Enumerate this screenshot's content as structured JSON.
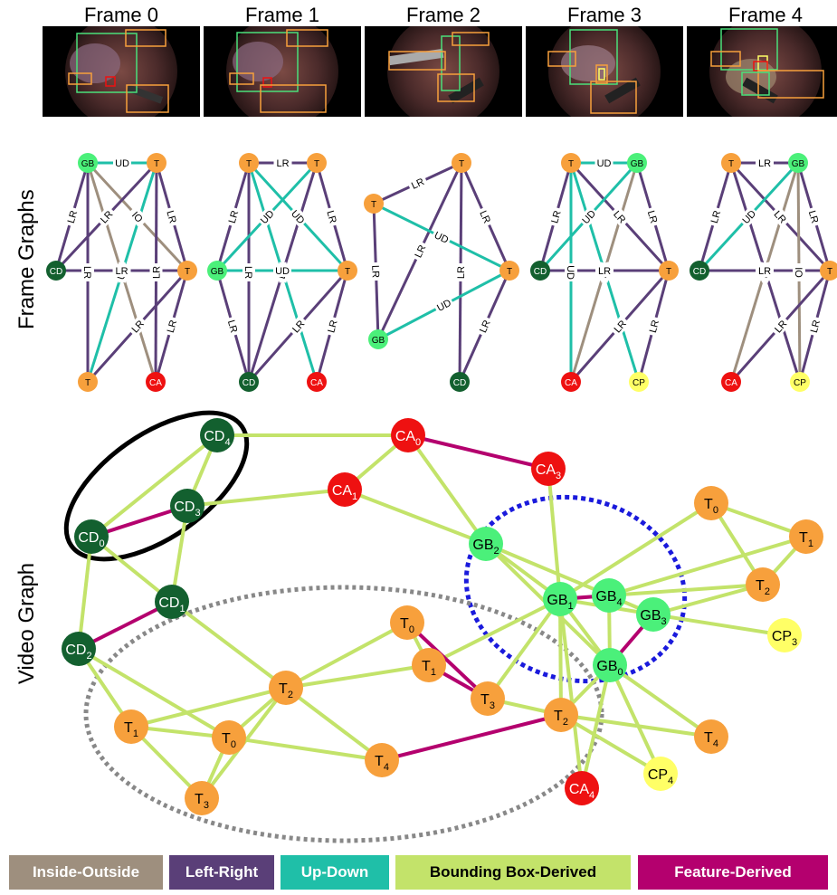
{
  "frames": {
    "titles": [
      "Frame 0",
      "Frame 1",
      "Frame 2",
      "Frame 3",
      "Frame 4"
    ]
  },
  "side_labels": {
    "frame_graphs": "Frame Graphs",
    "video_graph": "Video Graph"
  },
  "colors": {
    "T": "#f7a03c",
    "GB": "#4bf07a",
    "CD": "#13602f",
    "CA": "#ee1111",
    "CP": "#ffff66",
    "inside_outside": "#9e8f7e",
    "left_right": "#5a3f78",
    "up_down": "#1fbfa8",
    "bbox": "#c3e36a",
    "feature": "#b4006e"
  },
  "frame_graphs": [
    {
      "nodes": [
        {
          "label": "GB",
          "type": "GB"
        },
        {
          "label": "T",
          "type": "T"
        },
        {
          "label": "CD",
          "type": "CD"
        },
        {
          "label": "T",
          "type": "T"
        },
        {
          "label": "T",
          "type": "T"
        },
        {
          "label": "CA",
          "type": "CA"
        }
      ],
      "edges": [
        {
          "s": 0,
          "t": 1,
          "type": "up_down",
          "label": "UD"
        },
        {
          "s": 0,
          "t": 2,
          "type": "left_right",
          "label": "LR"
        },
        {
          "s": 0,
          "t": 3,
          "type": "inside_outside",
          "label": "IO"
        },
        {
          "s": 0,
          "t": 4,
          "type": "left_right",
          "label": "LR"
        },
        {
          "s": 0,
          "t": 5,
          "type": "inside_outside",
          "label": "IO"
        },
        {
          "s": 1,
          "t": 2,
          "type": "left_right",
          "label": "LR"
        },
        {
          "s": 1,
          "t": 3,
          "type": "left_right",
          "label": "LR"
        },
        {
          "s": 1,
          "t": 4,
          "type": "up_down",
          "label": "UD"
        },
        {
          "s": 1,
          "t": 5,
          "type": "left_right",
          "label": "LR"
        },
        {
          "s": 2,
          "t": 3,
          "type": "left_right",
          "label": "LR"
        },
        {
          "s": 3,
          "t": 4,
          "type": "left_right",
          "label": "LR"
        },
        {
          "s": 3,
          "t": 5,
          "type": "left_right",
          "label": "LR"
        }
      ]
    },
    {
      "nodes": [
        {
          "label": "T",
          "type": "T"
        },
        {
          "label": "T",
          "type": "T"
        },
        {
          "label": "GB",
          "type": "GB"
        },
        {
          "label": "T",
          "type": "T"
        },
        {
          "label": "CD",
          "type": "CD"
        },
        {
          "label": "CA",
          "type": "CA"
        }
      ],
      "edges": [
        {
          "s": 0,
          "t": 1,
          "type": "left_right",
          "label": "LR"
        },
        {
          "s": 0,
          "t": 2,
          "type": "left_right",
          "label": "LR"
        },
        {
          "s": 0,
          "t": 3,
          "type": "up_down",
          "label": "UD"
        },
        {
          "s": 0,
          "t": 4,
          "type": "left_right",
          "label": "LR"
        },
        {
          "s": 0,
          "t": 5,
          "type": "up_down",
          "label": "UD"
        },
        {
          "s": 1,
          "t": 2,
          "type": "up_down",
          "label": "UD"
        },
        {
          "s": 1,
          "t": 3,
          "type": "left_right",
          "label": "LR"
        },
        {
          "s": 1,
          "t": 4,
          "type": "left_right",
          "label": "LR"
        },
        {
          "s": 2,
          "t": 3,
          "type": "up_down",
          "label": "UD"
        },
        {
          "s": 2,
          "t": 4,
          "type": "left_right",
          "label": "LR"
        },
        {
          "s": 3,
          "t": 4,
          "type": "left_right",
          "label": "LR"
        },
        {
          "s": 3,
          "t": 5,
          "type": "left_right",
          "label": "LR"
        }
      ]
    },
    {
      "nodes": [
        {
          "label": "T",
          "type": "T"
        },
        {
          "label": "T",
          "type": "T"
        },
        {
          "label": "T",
          "type": "T"
        },
        {
          "label": "GB",
          "type": "GB"
        },
        {
          "label": "CD",
          "type": "CD"
        }
      ],
      "edges": [
        {
          "s": 0,
          "t": 1,
          "type": "left_right",
          "label": "LR"
        },
        {
          "s": 0,
          "t": 2,
          "type": "left_right",
          "label": "LR"
        },
        {
          "s": 0,
          "t": 3,
          "type": "left_right",
          "label": "LR"
        },
        {
          "s": 0,
          "t": 4,
          "type": "left_right",
          "label": "LR"
        },
        {
          "s": 1,
          "t": 2,
          "type": "up_down",
          "label": "UD"
        },
        {
          "s": 1,
          "t": 3,
          "type": "left_right",
          "label": "LR"
        },
        {
          "s": 3,
          "t": 2,
          "type": "up_down",
          "label": "UD"
        },
        {
          "s": 2,
          "t": 4,
          "type": "left_right",
          "label": "LR"
        }
      ]
    },
    {
      "nodes": [
        {
          "label": "T",
          "type": "T"
        },
        {
          "label": "GB",
          "type": "GB"
        },
        {
          "label": "CD",
          "type": "CD"
        },
        {
          "label": "T",
          "type": "T"
        },
        {
          "label": "CA",
          "type": "CA"
        },
        {
          "label": "CP",
          "type": "CP"
        }
      ],
      "edges": [
        {
          "s": 0,
          "t": 1,
          "type": "up_down",
          "label": "UD"
        },
        {
          "s": 0,
          "t": 2,
          "type": "left_right",
          "label": "LR"
        },
        {
          "s": 0,
          "t": 3,
          "type": "left_right",
          "label": "LR"
        },
        {
          "s": 0,
          "t": 4,
          "type": "up_down",
          "label": "UD"
        },
        {
          "s": 0,
          "t": 5,
          "type": "up_down",
          "label": "UD"
        },
        {
          "s": 1,
          "t": 2,
          "type": "up_down",
          "label": "UD"
        },
        {
          "s": 1,
          "t": 3,
          "type": "left_right",
          "label": "LR"
        },
        {
          "s": 1,
          "t": 4,
          "type": "inside_outside",
          "label": "IO"
        },
        {
          "s": 2,
          "t": 3,
          "type": "left_right",
          "label": "LR"
        },
        {
          "s": 3,
          "t": 4,
          "type": "left_right",
          "label": "LR"
        },
        {
          "s": 3,
          "t": 5,
          "type": "left_right",
          "label": "LR"
        }
      ]
    },
    {
      "nodes": [
        {
          "label": "T",
          "type": "T"
        },
        {
          "label": "GB",
          "type": "GB"
        },
        {
          "label": "CD",
          "type": "CD"
        },
        {
          "label": "T",
          "type": "T"
        },
        {
          "label": "CA",
          "type": "CA"
        },
        {
          "label": "CP",
          "type": "CP"
        }
      ],
      "edges": [
        {
          "s": 0,
          "t": 1,
          "type": "left_right",
          "label": "LR"
        },
        {
          "s": 0,
          "t": 2,
          "type": "left_right",
          "label": "LR"
        },
        {
          "s": 0,
          "t": 3,
          "type": "left_right",
          "label": "LR"
        },
        {
          "s": 0,
          "t": 5,
          "type": "left_right",
          "label": "LR"
        },
        {
          "s": 1,
          "t": 2,
          "type": "up_down",
          "label": "UD"
        },
        {
          "s": 1,
          "t": 3,
          "type": "left_right",
          "label": "LR"
        },
        {
          "s": 1,
          "t": 4,
          "type": "inside_outside",
          "label": "IO"
        },
        {
          "s": 1,
          "t": 5,
          "type": "inside_outside",
          "label": "IO"
        },
        {
          "s": 2,
          "t": 3,
          "type": "left_right",
          "label": "LR"
        },
        {
          "s": 3,
          "t": 4,
          "type": "left_right",
          "label": "LR"
        },
        {
          "s": 3,
          "t": 5,
          "type": "left_right",
          "label": "LR"
        }
      ]
    }
  ],
  "video_graph": {
    "nodes": [
      {
        "id": "CD4",
        "base": "CD",
        "sub": "4",
        "type": "CD"
      },
      {
        "id": "CD3",
        "base": "CD",
        "sub": "3",
        "type": "CD"
      },
      {
        "id": "CD0",
        "base": "CD",
        "sub": "0",
        "type": "CD"
      },
      {
        "id": "CD1",
        "base": "CD",
        "sub": "1",
        "type": "CD"
      },
      {
        "id": "CD2",
        "base": "CD",
        "sub": "2",
        "type": "CD"
      },
      {
        "id": "CA0",
        "base": "CA",
        "sub": "0",
        "type": "CA"
      },
      {
        "id": "CA1",
        "base": "CA",
        "sub": "1",
        "type": "CA"
      },
      {
        "id": "CA3",
        "base": "CA",
        "sub": "3",
        "type": "CA"
      },
      {
        "id": "CA4",
        "base": "CA",
        "sub": "4",
        "type": "CA"
      },
      {
        "id": "GB2",
        "base": "GB",
        "sub": "2",
        "type": "GB"
      },
      {
        "id": "GB1",
        "base": "GB",
        "sub": "1",
        "type": "GB"
      },
      {
        "id": "GB4",
        "base": "GB",
        "sub": "4",
        "type": "GB"
      },
      {
        "id": "GB3",
        "base": "GB",
        "sub": "3",
        "type": "GB"
      },
      {
        "id": "GB0",
        "base": "GB",
        "sub": "0",
        "type": "GB"
      },
      {
        "id": "T0a",
        "base": "T",
        "sub": "0",
        "type": "T"
      },
      {
        "id": "T1a",
        "base": "T",
        "sub": "1",
        "type": "T"
      },
      {
        "id": "T2a",
        "base": "T",
        "sub": "2",
        "type": "T"
      },
      {
        "id": "CP3",
        "base": "CP",
        "sub": "3",
        "type": "CP"
      },
      {
        "id": "CP4",
        "base": "CP",
        "sub": "4",
        "type": "CP"
      },
      {
        "id": "T4a",
        "base": "T",
        "sub": "4",
        "type": "T"
      },
      {
        "id": "T2b",
        "base": "T",
        "sub": "2",
        "type": "T"
      },
      {
        "id": "T0b",
        "base": "T",
        "sub": "0",
        "type": "T"
      },
      {
        "id": "T1b",
        "base": "T",
        "sub": "1",
        "type": "T"
      },
      {
        "id": "T3b",
        "base": "T",
        "sub": "3",
        "type": "T"
      },
      {
        "id": "T2c",
        "base": "T",
        "sub": "2",
        "type": "T"
      },
      {
        "id": "T1c",
        "base": "T",
        "sub": "1",
        "type": "T"
      },
      {
        "id": "T0c",
        "base": "T",
        "sub": "0",
        "type": "T"
      },
      {
        "id": "T3c",
        "base": "T",
        "sub": "3",
        "type": "T"
      },
      {
        "id": "T4c",
        "base": "T",
        "sub": "4",
        "type": "T"
      }
    ],
    "edges": [
      {
        "s": "CD0",
        "t": "CD3",
        "type": "feature"
      },
      {
        "s": "CD1",
        "t": "CD2",
        "type": "feature"
      },
      {
        "s": "CA0",
        "t": "CA3",
        "type": "feature"
      },
      {
        "s": "T0b",
        "t": "T3b",
        "type": "feature"
      },
      {
        "s": "T1b",
        "t": "T3b",
        "type": "feature"
      },
      {
        "s": "T4c",
        "t": "T2b",
        "type": "feature"
      },
      {
        "s": "GB1",
        "t": "GB4",
        "type": "feature"
      },
      {
        "s": "GB3",
        "t": "GB0",
        "type": "feature"
      },
      {
        "s": "CD4",
        "t": "CD0",
        "type": "bbox"
      },
      {
        "s": "CD4",
        "t": "CD3",
        "type": "bbox"
      },
      {
        "s": "CD4",
        "t": "CA0",
        "type": "bbox"
      },
      {
        "s": "CD3",
        "t": "CD1",
        "type": "bbox"
      },
      {
        "s": "CD3",
        "t": "CA1",
        "type": "bbox"
      },
      {
        "s": "CD0",
        "t": "CD1",
        "type": "bbox"
      },
      {
        "s": "CD0",
        "t": "CD2",
        "type": "bbox"
      },
      {
        "s": "CD2",
        "t": "T1c",
        "type": "bbox"
      },
      {
        "s": "CD2",
        "t": "T0c",
        "type": "bbox"
      },
      {
        "s": "CD1",
        "t": "T2c",
        "type": "bbox"
      },
      {
        "s": "CA0",
        "t": "CA1",
        "type": "bbox"
      },
      {
        "s": "CA0",
        "t": "GB2",
        "type": "bbox"
      },
      {
        "s": "CA1",
        "t": "GB2",
        "type": "bbox"
      },
      {
        "s": "CA3",
        "t": "GB1",
        "type": "bbox"
      },
      {
        "s": "GB2",
        "t": "GB1",
        "type": "bbox"
      },
      {
        "s": "GB2",
        "t": "GB4",
        "type": "bbox"
      },
      {
        "s": "GB2",
        "t": "GB0",
        "type": "bbox"
      },
      {
        "s": "GB1",
        "t": "GB3",
        "type": "bbox"
      },
      {
        "s": "GB1",
        "t": "GB0",
        "type": "bbox"
      },
      {
        "s": "GB4",
        "t": "GB0",
        "type": "bbox"
      },
      {
        "s": "GB4",
        "t": "GB3",
        "type": "bbox"
      },
      {
        "s": "GB1",
        "t": "T0a",
        "type": "bbox"
      },
      {
        "s": "GB4",
        "t": "T2a",
        "type": "bbox"
      },
      {
        "s": "GB4",
        "t": "T1a",
        "type": "bbox"
      },
      {
        "s": "T0a",
        "t": "T1a",
        "type": "bbox"
      },
      {
        "s": "T0a",
        "t": "T2a",
        "type": "bbox"
      },
      {
        "s": "T1a",
        "t": "T2a",
        "type": "bbox"
      },
      {
        "s": "GB3",
        "t": "T2a",
        "type": "bbox"
      },
      {
        "s": "GB3",
        "t": "CP3",
        "type": "bbox"
      },
      {
        "s": "GB1",
        "t": "T1b",
        "type": "bbox"
      },
      {
        "s": "GB1",
        "t": "T3b",
        "type": "bbox"
      },
      {
        "s": "GB1",
        "t": "T2b",
        "type": "bbox"
      },
      {
        "s": "GB1",
        "t": "CA4",
        "type": "bbox"
      },
      {
        "s": "GB0",
        "t": "T2b",
        "type": "bbox"
      },
      {
        "s": "GB0",
        "t": "CA4",
        "type": "bbox"
      },
      {
        "s": "GB0",
        "t": "CP4",
        "type": "bbox"
      },
      {
        "s": "GB0",
        "t": "T4a",
        "type": "bbox"
      },
      {
        "s": "T2b",
        "t": "T4a",
        "type": "bbox"
      },
      {
        "s": "T2b",
        "t": "CP4",
        "type": "bbox"
      },
      {
        "s": "T2b",
        "t": "T3b",
        "type": "bbox"
      },
      {
        "s": "T0b",
        "t": "T2c",
        "type": "bbox"
      },
      {
        "s": "T0b",
        "t": "T1b",
        "type": "bbox"
      },
      {
        "s": "T1b",
        "t": "T2c",
        "type": "bbox"
      },
      {
        "s": "T2c",
        "t": "T1c",
        "type": "bbox"
      },
      {
        "s": "T2c",
        "t": "T0c",
        "type": "bbox"
      },
      {
        "s": "T2c",
        "t": "T3c",
        "type": "bbox"
      },
      {
        "s": "T2c",
        "t": "T4c",
        "type": "bbox"
      },
      {
        "s": "T1c",
        "t": "T0c",
        "type": "bbox"
      },
      {
        "s": "T1c",
        "t": "T3c",
        "type": "bbox"
      },
      {
        "s": "T0c",
        "t": "T4c",
        "type": "bbox"
      },
      {
        "s": "T0c",
        "t": "T3c",
        "type": "bbox"
      }
    ]
  },
  "legend": [
    {
      "label": "Inside-Outside",
      "color_key": "inside_outside",
      "text_color": "#ffffff"
    },
    {
      "label": "Left-Right",
      "color_key": "left_right",
      "text_color": "#ffffff"
    },
    {
      "label": "Up-Down",
      "color_key": "up_down",
      "text_color": "#ffffff"
    },
    {
      "label": "Bounding Box-Derived",
      "color_key": "bbox",
      "text_color": "#000000"
    },
    {
      "label": "Feature-Derived",
      "color_key": "feature",
      "text_color": "#ffffff"
    }
  ]
}
